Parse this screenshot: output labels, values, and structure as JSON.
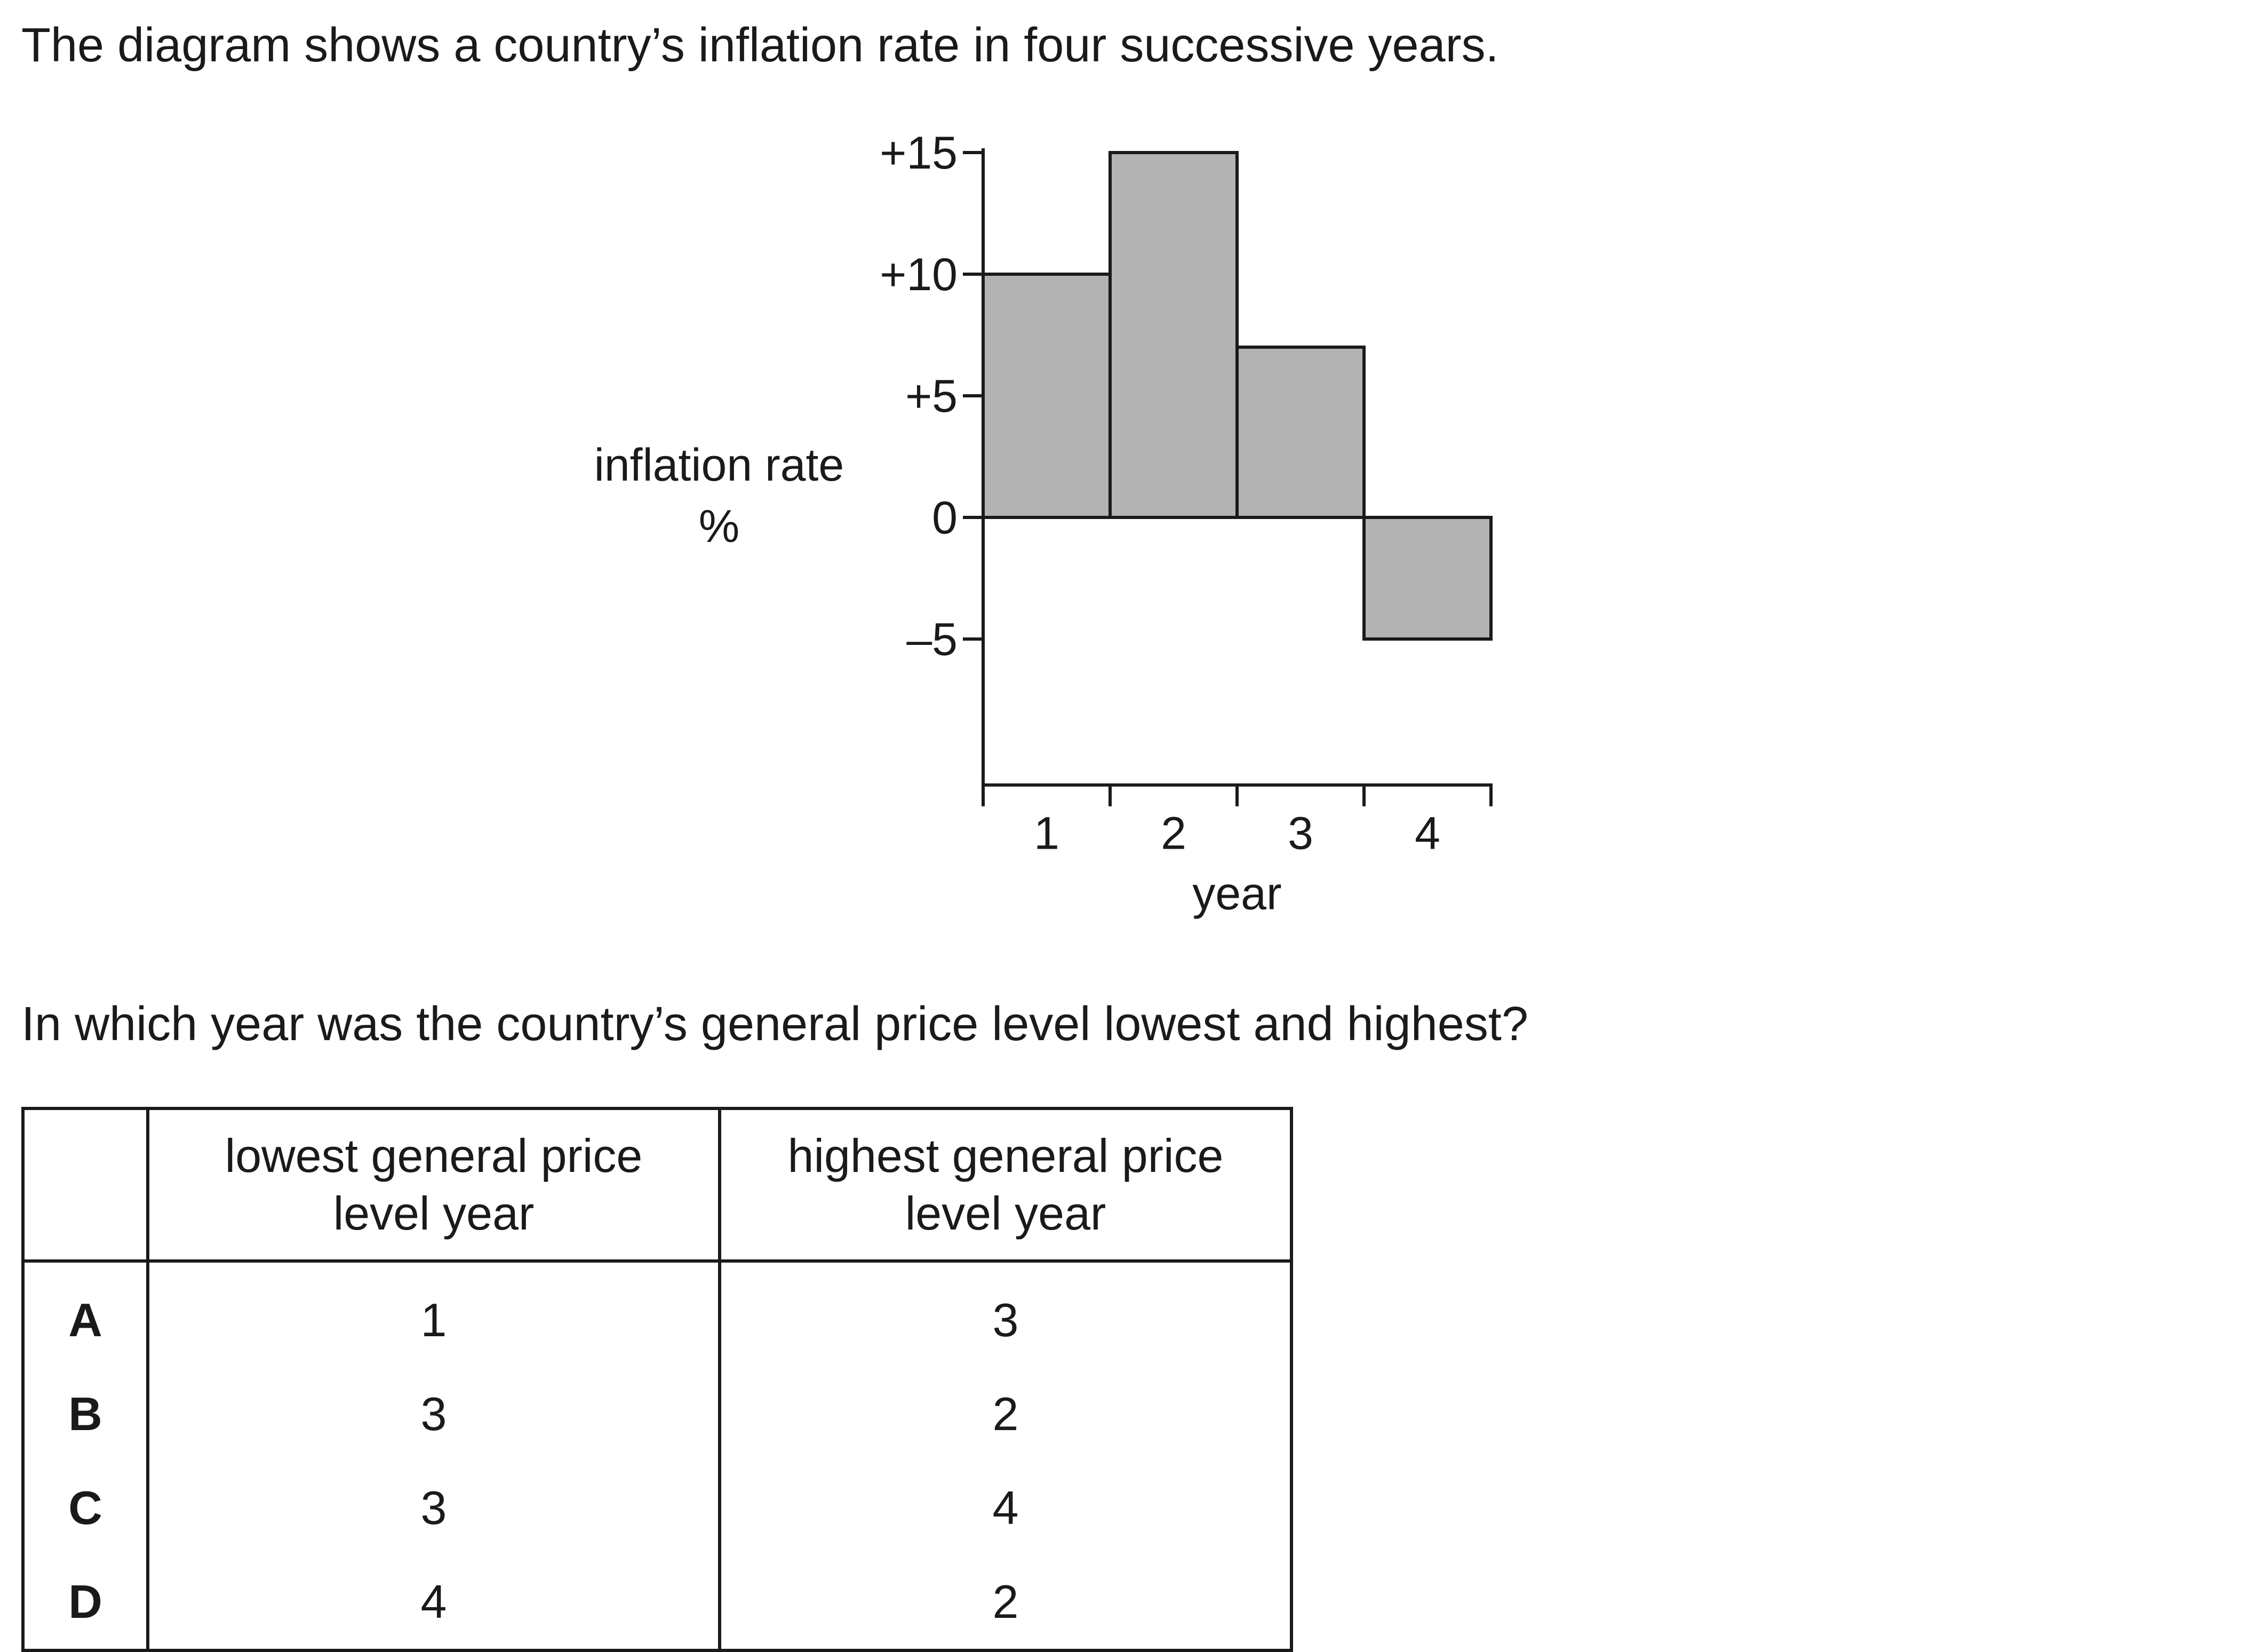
{
  "intro_text": "The diagram shows a country’s inflation rate in four successive years.",
  "question_text": "In which year was the country’s general price level lowest and highest?",
  "chart_data": {
    "type": "bar",
    "categories": [
      "1",
      "2",
      "3",
      "4"
    ],
    "values": [
      10,
      15,
      7,
      -5
    ],
    "xlabel": "year",
    "ylabel_lines": [
      "inflation rate",
      "%"
    ],
    "y_ticks": [
      15,
      10,
      5,
      0,
      -5
    ],
    "y_tick_labels": [
      "+15",
      "+10",
      "+5",
      "0",
      "–5"
    ],
    "ylim": [
      -11,
      15
    ],
    "bar_color": "#b3b3b3",
    "bar_edge_color": "#1a1a1a",
    "grid": false
  },
  "options_table": {
    "headers": {
      "letter": "",
      "lowest": [
        "lowest general price",
        "level year"
      ],
      "highest": [
        "highest general price",
        "level year"
      ]
    },
    "rows": [
      {
        "letter": "A",
        "lowest": "1",
        "highest": "3"
      },
      {
        "letter": "B",
        "lowest": "3",
        "highest": "2"
      },
      {
        "letter": "C",
        "lowest": "3",
        "highest": "4"
      },
      {
        "letter": "D",
        "lowest": "4",
        "highest": "2"
      }
    ]
  }
}
